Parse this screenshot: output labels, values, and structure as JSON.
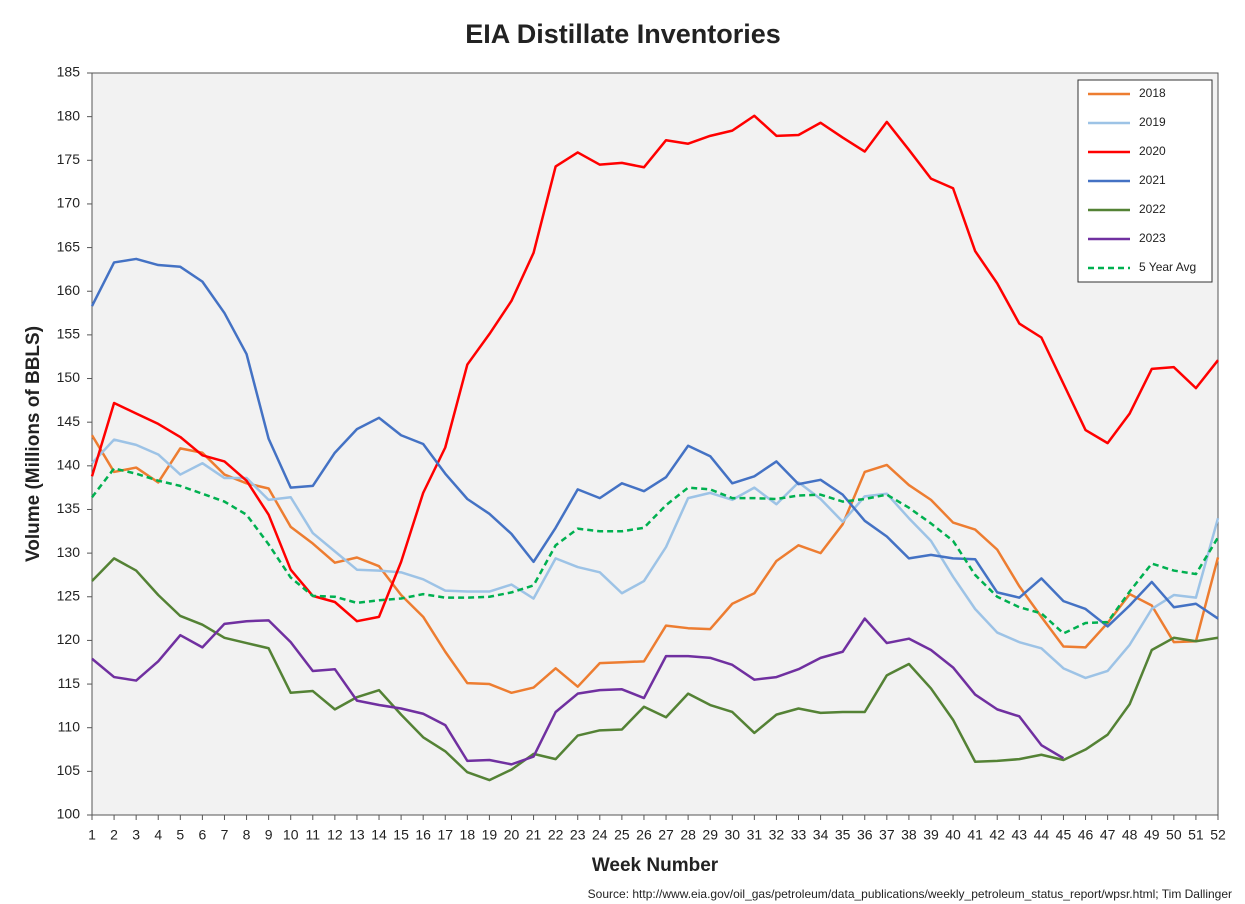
{
  "chart_data": {
    "type": "line",
    "title": "EIA Distillate Inventories",
    "xlabel": "Week Number",
    "ylabel": "Volume (Millions of BBLS)",
    "source": "Source: http://www.eia.gov/oil_gas/petroleum/data_publications/weekly_petroleum_status_report/wpsr.html; Tim Dallinger",
    "x": [
      1,
      2,
      3,
      4,
      5,
      6,
      7,
      8,
      9,
      10,
      11,
      12,
      13,
      14,
      15,
      16,
      17,
      18,
      19,
      20,
      21,
      22,
      23,
      24,
      25,
      26,
      27,
      28,
      29,
      30,
      31,
      32,
      33,
      34,
      35,
      36,
      37,
      38,
      39,
      40,
      41,
      42,
      43,
      44,
      45,
      46,
      47,
      48,
      49,
      50,
      51,
      52
    ],
    "xlim": [
      1,
      52
    ],
    "ylim": [
      100,
      185
    ],
    "yticks": [
      100,
      105,
      110,
      115,
      120,
      125,
      130,
      135,
      140,
      145,
      150,
      155,
      160,
      165,
      170,
      175,
      180,
      185
    ],
    "legend": "upper right",
    "grid": false,
    "series": [
      {
        "name": "2018",
        "color": "#ed7d31",
        "dash": false,
        "values": [
          143.5,
          139.3,
          139.8,
          138.1,
          142,
          141.5,
          139,
          138,
          137.4,
          133,
          131.1,
          128.9,
          129.5,
          128.5,
          125.2,
          122.7,
          118.7,
          115.1,
          115,
          114,
          114.6,
          116.8,
          114.7,
          117.4,
          117.5,
          117.6,
          121.7,
          121.4,
          121.3,
          124.2,
          125.4,
          129.1,
          130.9,
          130,
          133.3,
          139.3,
          140.1,
          137.8,
          136.1,
          133.5,
          132.7,
          130.4,
          126.2,
          122.7,
          119.3,
          119.2,
          122,
          125.3,
          124,
          119.8,
          119.9,
          129.5
        ]
      },
      {
        "name": "2019",
        "color": "#9dc3e6",
        "dash": false,
        "values": [
          140.3,
          143,
          142.4,
          141.3,
          139,
          140.3,
          138.6,
          138.6,
          136.1,
          136.4,
          132.3,
          130.2,
          128.1,
          128,
          127.8,
          127,
          125.7,
          125.6,
          125.6,
          126.4,
          124.8,
          129.4,
          128.4,
          127.8,
          125.4,
          126.8,
          130.7,
          136.3,
          136.9,
          136.1,
          137.5,
          135.6,
          138.1,
          136.2,
          133.6,
          136.5,
          136.8,
          134,
          131.4,
          127.3,
          123.6,
          120.9,
          119.8,
          119.1,
          116.8,
          115.7,
          116.5,
          119.5,
          123.6,
          125.2,
          124.9,
          134
        ]
      },
      {
        "name": "2020",
        "color": "#ff0000",
        "dash": false,
        "values": [
          138.8,
          147.2,
          146,
          144.8,
          143.3,
          141.2,
          140.5,
          138.3,
          134.4,
          128.1,
          125.1,
          124.4,
          122.2,
          122.7,
          129,
          136.9,
          142.1,
          151.6,
          155.1,
          158.9,
          164.4,
          174.3,
          175.9,
          174.5,
          174.7,
          174.2,
          177.3,
          176.9,
          177.8,
          178.4,
          180.1,
          177.8,
          177.9,
          179.3,
          177.6,
          176,
          179.4,
          176.2,
          172.9,
          171.8,
          164.6,
          160.9,
          156.3,
          154.7,
          149.4,
          144.1,
          142.6,
          146,
          151.1,
          151.3,
          148.9,
          152.1
        ]
      },
      {
        "name": "2021",
        "color": "#4472c4",
        "dash": false,
        "values": [
          158.3,
          163.3,
          163.7,
          163,
          162.8,
          161.1,
          157.5,
          152.8,
          143.1,
          137.5,
          137.7,
          141.5,
          144.2,
          145.5,
          143.5,
          142.5,
          139.1,
          136.2,
          134.5,
          132.2,
          129,
          132.9,
          137.3,
          136.3,
          138,
          137.1,
          138.7,
          142.3,
          141.1,
          138,
          138.8,
          140.5,
          137.9,
          138.4,
          136.7,
          133.7,
          131.9,
          129.4,
          129.8,
          129.4,
          129.3,
          125.5,
          124.9,
          127.1,
          124.5,
          123.6,
          121.6,
          124,
          126.7,
          123.8,
          124.2,
          122.5
        ]
      },
      {
        "name": "2022",
        "color": "#548235",
        "dash": false,
        "values": [
          126.8,
          129.4,
          128,
          125.2,
          122.8,
          121.8,
          120.3,
          119.7,
          119.1,
          114,
          114.2,
          112.1,
          113.5,
          114.3,
          111.5,
          108.9,
          107.3,
          104.9,
          104,
          105.2,
          107,
          106.4,
          109.1,
          109.7,
          109.8,
          112.4,
          111.2,
          113.9,
          112.6,
          111.8,
          109.4,
          111.5,
          112.2,
          111.7,
          111.8,
          111.8,
          116,
          117.3,
          114.5,
          110.9,
          106.1,
          106.2,
          106.4,
          106.9,
          106.3,
          107.5,
          109.2,
          112.7,
          118.9,
          120.3,
          119.9,
          120.3
        ]
      },
      {
        "name": "2023",
        "color": "#7030a0",
        "dash": false,
        "values": [
          117.9,
          115.8,
          115.4,
          117.6,
          120.6,
          119.2,
          121.9,
          122.2,
          122.3,
          119.8,
          116.5,
          116.7,
          113.1,
          112.6,
          112.2,
          111.6,
          110.3,
          106.2,
          106.3,
          105.8,
          106.7,
          111.8,
          113.9,
          114.3,
          114.4,
          113.4,
          118.2,
          118.2,
          118,
          117.2,
          115.5,
          115.8,
          116.7,
          118,
          118.7,
          122.5,
          119.7,
          120.2,
          118.9,
          116.9,
          113.8,
          112.1,
          111.3,
          108,
          106.5,
          null,
          null,
          null,
          null,
          null,
          null,
          null
        ]
      },
      {
        "name": "5 Year Avg",
        "color": "#00b050",
        "dash": true,
        "values": [
          136.4,
          139.7,
          139.1,
          138.3,
          137.7,
          136.8,
          135.9,
          134.4,
          131,
          127.2,
          125.1,
          125,
          124.3,
          124.6,
          124.8,
          125.3,
          124.9,
          124.9,
          125,
          125.5,
          126.3,
          130.9,
          132.8,
          132.5,
          132.5,
          132.9,
          135.5,
          137.5,
          137.3,
          136.3,
          136.3,
          136.2,
          136.6,
          136.7,
          135.9,
          136.2,
          136.7,
          135.2,
          133.4,
          131.4,
          127.5,
          125,
          123.8,
          123.1,
          120.8,
          122,
          122.1,
          125.6,
          128.8,
          128,
          127.6,
          131.8
        ]
      }
    ]
  }
}
